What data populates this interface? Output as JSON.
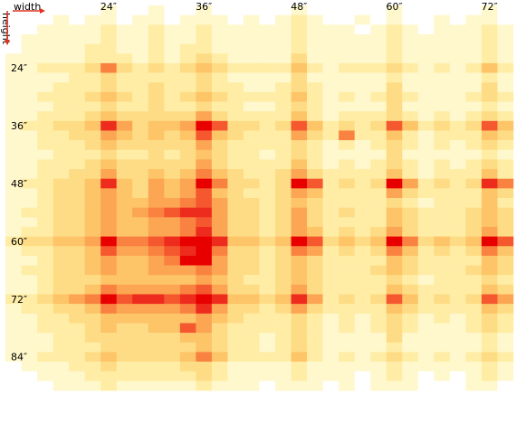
{
  "chart_data": {
    "type": "heatmap",
    "x_label": "width",
    "y_label": "height",
    "x": [
      12,
      14,
      16,
      18,
      20,
      22,
      24,
      26,
      28,
      30,
      32,
      34,
      36,
      38,
      40,
      42,
      44,
      46,
      48,
      50,
      52,
      54,
      56,
      58,
      60,
      62,
      64,
      66,
      68,
      70,
      72,
      74
    ],
    "y": [
      12,
      14,
      16,
      18,
      20,
      22,
      24,
      26,
      28,
      30,
      32,
      34,
      36,
      38,
      40,
      42,
      44,
      46,
      48,
      50,
      52,
      54,
      56,
      58,
      60,
      62,
      64,
      66,
      68,
      70,
      72,
      74,
      76,
      78,
      80,
      82,
      84,
      86,
      88,
      90
    ],
    "xlim": [
      11,
      75
    ],
    "ylim": [
      11,
      91
    ],
    "xticks": [
      {
        "value": 24,
        "label": "24″"
      },
      {
        "value": 36,
        "label": "36″"
      },
      {
        "value": 48,
        "label": "48″"
      },
      {
        "value": 60,
        "label": "60″"
      },
      {
        "value": 72,
        "label": "72″"
      }
    ],
    "yticks": [
      {
        "value": 24,
        "label": "24″"
      },
      {
        "value": 36,
        "label": "36″"
      },
      {
        "value": 48,
        "label": "48″"
      },
      {
        "value": 60,
        "label": "60″"
      },
      {
        "value": 72,
        "label": "72″"
      },
      {
        "value": 84,
        "label": "84″"
      }
    ],
    "colorscale": [
      "#ffffff",
      "#fff8cc",
      "#ffeda6",
      "#fedc85",
      "#fdc468",
      "#fca552",
      "#fa8240",
      "#f5582e",
      "#ee2c1d",
      "#e80000"
    ],
    "z": [
      [
        0,
        0,
        0,
        0,
        0,
        0,
        1,
        0,
        0,
        1,
        0,
        0,
        1,
        0,
        0,
        0,
        0,
        0,
        1,
        0,
        0,
        0,
        0,
        0,
        1,
        0,
        0,
        0,
        0,
        0,
        1,
        0
      ],
      [
        0,
        0,
        0,
        1,
        0,
        1,
        1,
        0,
        1,
        1,
        0,
        1,
        1,
        1,
        0,
        1,
        0,
        1,
        2,
        1,
        0,
        0,
        1,
        0,
        1,
        0,
        0,
        1,
        0,
        1,
        1,
        0
      ],
      [
        0,
        0,
        1,
        1,
        1,
        1,
        2,
        1,
        1,
        2,
        1,
        1,
        2,
        1,
        1,
        1,
        1,
        1,
        2,
        1,
        1,
        1,
        0,
        1,
        2,
        1,
        0,
        1,
        1,
        1,
        2,
        1
      ],
      [
        0,
        1,
        1,
        1,
        1,
        1,
        2,
        1,
        1,
        2,
        1,
        1,
        2,
        1,
        1,
        1,
        1,
        1,
        2,
        1,
        1,
        1,
        1,
        1,
        2,
        1,
        1,
        1,
        1,
        1,
        2,
        1
      ],
      [
        0,
        1,
        1,
        1,
        1,
        2,
        2,
        1,
        1,
        2,
        1,
        2,
        2,
        1,
        1,
        1,
        1,
        1,
        2,
        1,
        1,
        1,
        1,
        1,
        2,
        1,
        1,
        1,
        1,
        1,
        2,
        1
      ],
      [
        1,
        1,
        1,
        1,
        1,
        2,
        2,
        2,
        1,
        2,
        1,
        2,
        3,
        2,
        1,
        1,
        1,
        1,
        3,
        1,
        1,
        1,
        1,
        1,
        2,
        1,
        1,
        1,
        1,
        1,
        2,
        1
      ],
      [
        1,
        1,
        2,
        2,
        2,
        3,
        6,
        3,
        2,
        3,
        2,
        3,
        4,
        3,
        2,
        2,
        2,
        2,
        4,
        2,
        1,
        2,
        2,
        2,
        3,
        2,
        1,
        2,
        1,
        2,
        4,
        2
      ],
      [
        1,
        1,
        1,
        1,
        2,
        2,
        3,
        2,
        2,
        2,
        2,
        2,
        3,
        2,
        1,
        1,
        1,
        1,
        3,
        1,
        1,
        1,
        1,
        1,
        2,
        1,
        1,
        1,
        1,
        1,
        2,
        1
      ],
      [
        1,
        1,
        1,
        2,
        2,
        2,
        3,
        2,
        2,
        3,
        2,
        2,
        3,
        2,
        2,
        1,
        1,
        2,
        3,
        2,
        1,
        1,
        1,
        1,
        3,
        1,
        1,
        1,
        1,
        1,
        3,
        1
      ],
      [
        1,
        1,
        2,
        2,
        2,
        3,
        4,
        3,
        2,
        3,
        2,
        3,
        4,
        3,
        2,
        2,
        2,
        2,
        4,
        2,
        1,
        2,
        1,
        2,
        3,
        2,
        1,
        1,
        1,
        2,
        3,
        2
      ],
      [
        1,
        1,
        1,
        2,
        2,
        2,
        3,
        2,
        2,
        3,
        2,
        2,
        3,
        2,
        2,
        1,
        1,
        2,
        3,
        2,
        1,
        1,
        1,
        1,
        3,
        1,
        1,
        1,
        1,
        1,
        2,
        1
      ],
      [
        1,
        1,
        2,
        2,
        2,
        3,
        4,
        3,
        3,
        3,
        3,
        3,
        5,
        3,
        2,
        2,
        2,
        2,
        4,
        2,
        1,
        2,
        2,
        2,
        3,
        2,
        1,
        2,
        1,
        2,
        3,
        2
      ],
      [
        1,
        2,
        2,
        3,
        3,
        4,
        8,
        5,
        3,
        4,
        4,
        5,
        9,
        7,
        3,
        3,
        2,
        3,
        7,
        4,
        2,
        3,
        2,
        3,
        7,
        4,
        2,
        3,
        2,
        3,
        7,
        4
      ],
      [
        1,
        1,
        2,
        2,
        3,
        3,
        5,
        4,
        3,
        4,
        3,
        4,
        7,
        4,
        3,
        2,
        2,
        2,
        5,
        3,
        2,
        6,
        2,
        2,
        4,
        2,
        1,
        2,
        2,
        2,
        4,
        3
      ],
      [
        1,
        1,
        2,
        2,
        2,
        3,
        4,
        3,
        3,
        3,
        3,
        3,
        5,
        3,
        2,
        2,
        2,
        2,
        3,
        2,
        1,
        2,
        1,
        2,
        3,
        2,
        1,
        2,
        1,
        2,
        3,
        2
      ],
      [
        1,
        1,
        1,
        2,
        2,
        2,
        3,
        2,
        2,
        3,
        2,
        3,
        4,
        3,
        2,
        2,
        1,
        2,
        3,
        2,
        1,
        1,
        1,
        1,
        3,
        1,
        1,
        1,
        1,
        1,
        2,
        1
      ],
      [
        1,
        1,
        2,
        2,
        2,
        3,
        4,
        3,
        3,
        3,
        3,
        3,
        5,
        3,
        2,
        2,
        2,
        2,
        4,
        2,
        1,
        2,
        1,
        2,
        3,
        2,
        1,
        2,
        1,
        2,
        3,
        2
      ],
      [
        1,
        1,
        2,
        2,
        3,
        3,
        5,
        3,
        3,
        4,
        3,
        4,
        6,
        4,
        3,
        2,
        2,
        3,
        5,
        3,
        2,
        2,
        2,
        2,
        4,
        2,
        1,
        2,
        2,
        2,
        4,
        2
      ],
      [
        1,
        2,
        2,
        3,
        3,
        4,
        8,
        4,
        3,
        5,
        4,
        5,
        9,
        6,
        3,
        3,
        2,
        3,
        9,
        7,
        2,
        3,
        2,
        3,
        9,
        5,
        2,
        3,
        2,
        3,
        8,
        6
      ],
      [
        1,
        1,
        2,
        3,
        3,
        4,
        5,
        4,
        3,
        5,
        4,
        5,
        7,
        4,
        3,
        2,
        2,
        3,
        5,
        4,
        2,
        2,
        2,
        2,
        5,
        3,
        2,
        2,
        2,
        2,
        4,
        3
      ],
      [
        1,
        1,
        2,
        3,
        3,
        4,
        5,
        4,
        4,
        5,
        5,
        6,
        7,
        5,
        3,
        3,
        2,
        3,
        4,
        3,
        2,
        2,
        2,
        2,
        3,
        2,
        1,
        2,
        2,
        2,
        4,
        2
      ],
      [
        1,
        2,
        2,
        3,
        3,
        4,
        5,
        4,
        5,
        6,
        7,
        8,
        8,
        5,
        3,
        3,
        2,
        3,
        5,
        3,
        2,
        3,
        2,
        2,
        4,
        3,
        2,
        2,
        2,
        3,
        4,
        3
      ],
      [
        1,
        1,
        2,
        3,
        3,
        4,
        5,
        4,
        4,
        5,
        5,
        6,
        7,
        5,
        3,
        3,
        2,
        3,
        5,
        3,
        2,
        2,
        2,
        2,
        4,
        3,
        2,
        2,
        2,
        3,
        4,
        3
      ],
      [
        1,
        2,
        2,
        3,
        3,
        4,
        5,
        4,
        4,
        5,
        5,
        6,
        8,
        5,
        3,
        3,
        2,
        3,
        5,
        4,
        2,
        3,
        2,
        3,
        5,
        3,
        2,
        2,
        2,
        3,
        5,
        3
      ],
      [
        2,
        3,
        3,
        4,
        4,
        5,
        9,
        6,
        6,
        7,
        8,
        9,
        9,
        8,
        4,
        4,
        3,
        4,
        9,
        7,
        3,
        4,
        3,
        4,
        9,
        6,
        3,
        4,
        3,
        4,
        9,
        7
      ],
      [
        1,
        2,
        2,
        3,
        3,
        4,
        7,
        5,
        5,
        6,
        7,
        8,
        9,
        6,
        3,
        3,
        2,
        3,
        6,
        5,
        2,
        3,
        2,
        3,
        6,
        4,
        2,
        3,
        2,
        3,
        6,
        4
      ],
      [
        1,
        1,
        2,
        3,
        3,
        4,
        5,
        4,
        4,
        5,
        6,
        9,
        9,
        5,
        3,
        3,
        2,
        3,
        4,
        3,
        2,
        2,
        2,
        2,
        4,
        3,
        2,
        2,
        2,
        2,
        4,
        3
      ],
      [
        1,
        2,
        2,
        3,
        3,
        4,
        5,
        4,
        4,
        5,
        5,
        5,
        6,
        5,
        3,
        3,
        2,
        3,
        4,
        3,
        2,
        2,
        2,
        3,
        4,
        3,
        2,
        2,
        2,
        3,
        4,
        3
      ],
      [
        1,
        1,
        2,
        3,
        3,
        3,
        4,
        4,
        4,
        4,
        4,
        4,
        5,
        4,
        3,
        2,
        2,
        3,
        4,
        3,
        2,
        2,
        2,
        2,
        3,
        2,
        1,
        2,
        2,
        2,
        3,
        2
      ],
      [
        1,
        1,
        2,
        3,
        3,
        4,
        6,
        5,
        5,
        5,
        5,
        6,
        7,
        5,
        3,
        3,
        2,
        3,
        5,
        3,
        2,
        2,
        2,
        2,
        4,
        3,
        2,
        2,
        2,
        2,
        4,
        3
      ],
      [
        2,
        2,
        3,
        4,
        5,
        6,
        9,
        7,
        8,
        8,
        7,
        8,
        9,
        8,
        4,
        4,
        3,
        4,
        8,
        5,
        2,
        3,
        2,
        3,
        7,
        4,
        2,
        3,
        2,
        3,
        7,
        5
      ],
      [
        1,
        2,
        2,
        3,
        3,
        4,
        6,
        5,
        5,
        5,
        5,
        6,
        8,
        5,
        3,
        3,
        2,
        3,
        5,
        3,
        2,
        2,
        2,
        2,
        4,
        3,
        2,
        2,
        2,
        2,
        4,
        3
      ],
      [
        1,
        1,
        2,
        2,
        3,
        3,
        4,
        4,
        4,
        4,
        4,
        4,
        5,
        4,
        3,
        2,
        2,
        2,
        3,
        2,
        1,
        2,
        1,
        2,
        3,
        2,
        1,
        2,
        1,
        2,
        3,
        2
      ],
      [
        1,
        1,
        2,
        2,
        2,
        3,
        4,
        3,
        3,
        4,
        4,
        7,
        5,
        3,
        2,
        2,
        2,
        2,
        3,
        2,
        1,
        2,
        1,
        2,
        3,
        2,
        1,
        1,
        1,
        2,
        3,
        2
      ],
      [
        1,
        1,
        1,
        2,
        2,
        3,
        3,
        3,
        3,
        3,
        3,
        4,
        4,
        3,
        2,
        2,
        1,
        2,
        3,
        2,
        1,
        1,
        1,
        1,
        3,
        1,
        1,
        1,
        1,
        1,
        2,
        1
      ],
      [
        1,
        1,
        1,
        2,
        2,
        2,
        3,
        3,
        3,
        3,
        3,
        3,
        4,
        3,
        2,
        2,
        1,
        2,
        3,
        2,
        1,
        1,
        1,
        1,
        2,
        1,
        1,
        1,
        1,
        1,
        2,
        1
      ],
      [
        1,
        1,
        2,
        2,
        2,
        3,
        4,
        3,
        3,
        3,
        3,
        4,
        6,
        4,
        2,
        2,
        2,
        2,
        4,
        2,
        1,
        2,
        1,
        2,
        3,
        2,
        1,
        2,
        1,
        2,
        3,
        2
      ],
      [
        0,
        1,
        1,
        1,
        2,
        2,
        3,
        2,
        2,
        2,
        2,
        3,
        3,
        2,
        1,
        1,
        1,
        1,
        2,
        1,
        1,
        1,
        1,
        1,
        2,
        1,
        1,
        1,
        1,
        1,
        2,
        1
      ],
      [
        0,
        0,
        1,
        1,
        1,
        2,
        2,
        2,
        2,
        2,
        2,
        2,
        3,
        2,
        1,
        1,
        1,
        1,
        2,
        1,
        1,
        1,
        0,
        1,
        2,
        1,
        0,
        1,
        0,
        1,
        2,
        1
      ],
      [
        0,
        0,
        0,
        1,
        1,
        1,
        2,
        1,
        1,
        1,
        1,
        1,
        2,
        1,
        1,
        1,
        0,
        1,
        1,
        1,
        0,
        1,
        0,
        1,
        1,
        1,
        0,
        0,
        0,
        1,
        1,
        0
      ]
    ]
  }
}
